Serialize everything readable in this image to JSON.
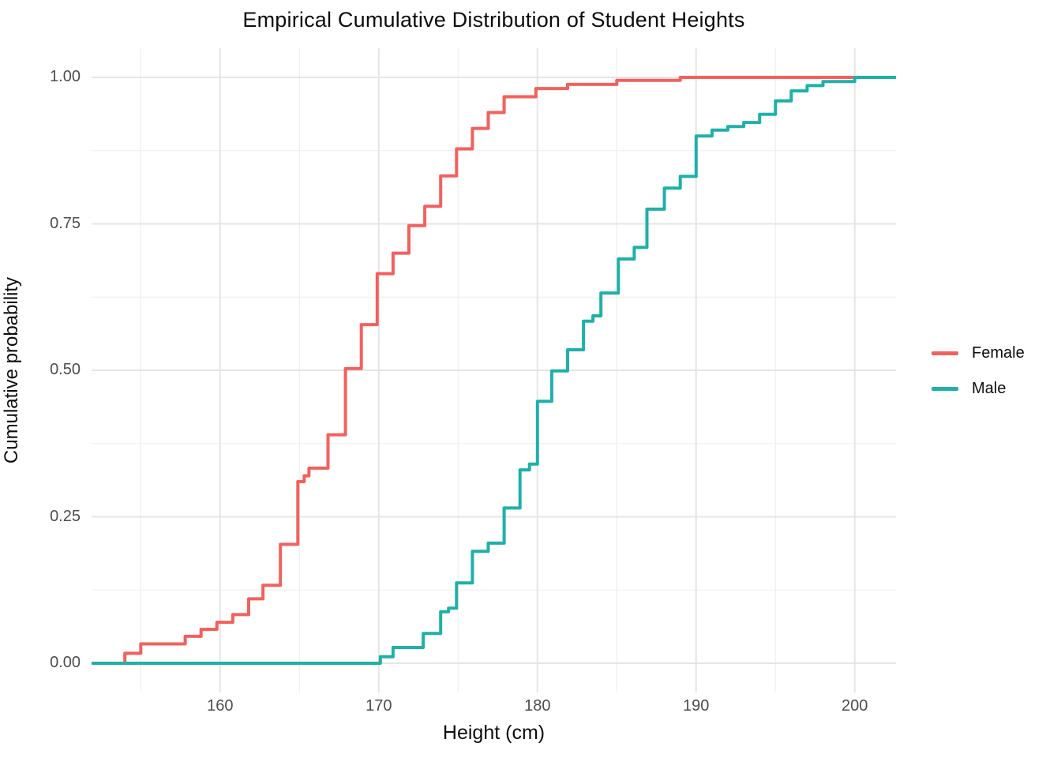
{
  "chart": {
    "title": "Empirical Cumulative Distribution of Student Heights",
    "x_axis": {
      "label": "Height (cm)",
      "ticks": [
        160,
        170,
        180,
        190,
        200
      ],
      "minor_ticks": [
        155,
        165,
        175,
        185,
        195
      ],
      "domain": [
        151.9,
        202.6
      ]
    },
    "y_axis": {
      "label": "Cumulative probability",
      "ticks": [
        "0.00",
        "0.25",
        "0.50",
        "0.75",
        "1.00"
      ],
      "tick_values": [
        0,
        0.25,
        0.5,
        0.75,
        1
      ],
      "minor_tick_values": [
        0.125,
        0.375,
        0.625,
        0.875
      ],
      "domain": [
        0,
        1
      ]
    },
    "legend": {
      "position": "right",
      "items": [
        {
          "label": "Female",
          "color": "#F2615D"
        },
        {
          "label": "Male",
          "color": "#1FB0AA"
        }
      ]
    },
    "style": {
      "background": "#FFFFFF",
      "grid_major_color": "#E5E5E5",
      "grid_minor_color": "#F0F0F0",
      "tick_text_color": "#4D4D4D",
      "line_width": 4
    }
  },
  "chart_data": {
    "type": "line",
    "subtype": "ecdf_step",
    "title": "Empirical Cumulative Distribution of Student Heights",
    "xlabel": "Height (cm)",
    "ylabel": "Cumulative probability",
    "xlim": [
      151.9,
      202.6
    ],
    "ylim": [
      0,
      1
    ],
    "grid": true,
    "legend_position": "right",
    "series": [
      {
        "name": "Female",
        "color": "#F2615D",
        "points": [
          [
            154.0,
            0.017
          ],
          [
            155.0,
            0.033
          ],
          [
            157.8,
            0.046
          ],
          [
            158.8,
            0.058
          ],
          [
            159.8,
            0.07
          ],
          [
            160.8,
            0.083
          ],
          [
            161.8,
            0.11
          ],
          [
            162.7,
            0.133
          ],
          [
            163.8,
            0.203
          ],
          [
            164.9,
            0.31
          ],
          [
            165.3,
            0.32
          ],
          [
            165.6,
            0.333
          ],
          [
            166.8,
            0.39
          ],
          [
            167.9,
            0.503
          ],
          [
            168.9,
            0.578
          ],
          [
            169.9,
            0.665
          ],
          [
            170.9,
            0.7
          ],
          [
            171.9,
            0.747
          ],
          [
            172.9,
            0.78
          ],
          [
            173.9,
            0.832
          ],
          [
            174.9,
            0.878
          ],
          [
            175.9,
            0.913
          ],
          [
            176.9,
            0.94
          ],
          [
            177.9,
            0.967
          ],
          [
            179.9,
            0.981
          ],
          [
            181.9,
            0.988
          ],
          [
            185.0,
            0.995
          ],
          [
            189.0,
            1.0
          ]
        ]
      },
      {
        "name": "Male",
        "color": "#1FB0AA",
        "points": [
          [
            170.1,
            0.011
          ],
          [
            170.9,
            0.027
          ],
          [
            172.8,
            0.051
          ],
          [
            173.9,
            0.088
          ],
          [
            174.4,
            0.094
          ],
          [
            174.9,
            0.137
          ],
          [
            175.9,
            0.191
          ],
          [
            176.9,
            0.205
          ],
          [
            177.9,
            0.265
          ],
          [
            178.9,
            0.33
          ],
          [
            179.5,
            0.34
          ],
          [
            180.0,
            0.447
          ],
          [
            180.9,
            0.499
          ],
          [
            181.9,
            0.535
          ],
          [
            182.9,
            0.584
          ],
          [
            183.5,
            0.593
          ],
          [
            184.0,
            0.632
          ],
          [
            185.1,
            0.69
          ],
          [
            186.1,
            0.71
          ],
          [
            186.9,
            0.775
          ],
          [
            188.0,
            0.811
          ],
          [
            189.0,
            0.831
          ],
          [
            190.0,
            0.9
          ],
          [
            191.0,
            0.91
          ],
          [
            192.0,
            0.916
          ],
          [
            193.0,
            0.923
          ],
          [
            194.0,
            0.937
          ],
          [
            195.0,
            0.96
          ],
          [
            196.0,
            0.977
          ],
          [
            197.0,
            0.986
          ],
          [
            198.0,
            0.993
          ],
          [
            200.0,
            1.0
          ]
        ]
      }
    ]
  }
}
